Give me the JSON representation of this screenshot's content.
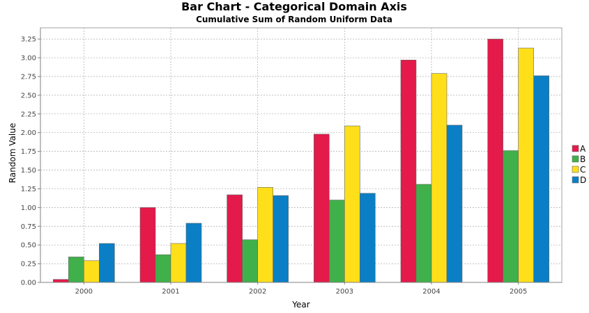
{
  "chart_data": {
    "type": "bar",
    "title": "Bar Chart - Categorical Domain Axis",
    "subtitle": "Cumulative Sum of Random Uniform Data",
    "xlabel": "Year",
    "ylabel": "Random Value",
    "categories": [
      "2000",
      "2001",
      "2002",
      "2003",
      "2004",
      "2005"
    ],
    "ylim": [
      0,
      3.4
    ],
    "yticks": [
      "0.00",
      "0.25",
      "0.50",
      "0.75",
      "1.00",
      "1.25",
      "1.50",
      "1.75",
      "2.00",
      "2.25",
      "2.50",
      "2.75",
      "3.00",
      "3.25"
    ],
    "grid": true,
    "legend_position": "right",
    "series": [
      {
        "name": "A",
        "color": "#e31a4a",
        "values": [
          0.04,
          1.0,
          1.17,
          1.98,
          2.97,
          3.25
        ]
      },
      {
        "name": "B",
        "color": "#40b04a",
        "values": [
          0.34,
          0.37,
          0.57,
          1.1,
          1.31,
          1.76
        ]
      },
      {
        "name": "C",
        "color": "#ffdf1a",
        "values": [
          0.29,
          0.52,
          1.27,
          2.09,
          2.79,
          3.13
        ]
      },
      {
        "name": "D",
        "color": "#0a7fc6",
        "values": [
          0.52,
          0.79,
          1.16,
          1.19,
          2.1,
          2.76
        ]
      }
    ]
  }
}
